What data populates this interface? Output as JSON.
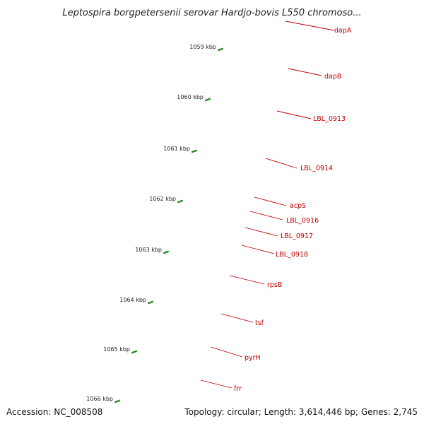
{
  "title": "Leptospira borgpetersenii serovar Hardjo-bovis L550 chromoso...",
  "footer": {
    "accession": "Accession: NC_008508",
    "summary": "Topology: circular; Length: 3,614,446 bp; Genes: 2,745"
  },
  "scale": {
    "unit": "kbp",
    "ticks": [
      "1059 kbp",
      "1060 kbp",
      "1061 kbp",
      "1062 kbp",
      "1063 kbp",
      "1064 kbp",
      "1065 kbp",
      "1066 kbp"
    ]
  },
  "genes": [
    {
      "name": "dapA",
      "color": "#6b8e23"
    },
    {
      "name": "dapB",
      "color": "#4682b4"
    },
    {
      "name": "LBL_0913",
      "color": "#696969"
    },
    {
      "name": "LBL_0914",
      "color": "#ff0000"
    },
    {
      "name": "acpS",
      "color": "#6a5acd"
    },
    {
      "name": "LBL_0916",
      "color": "#ff0000"
    },
    {
      "name": "LBL_0917",
      "color": "#6b8e23"
    },
    {
      "name": "LBL_0918",
      "color": "#ff0000"
    },
    {
      "name": "rpsB",
      "color": "#f08080"
    },
    {
      "name": "tsf",
      "color": "#f08080"
    },
    {
      "name": "pyrH",
      "color": "#00bfff"
    },
    {
      "name": "frr",
      "color": "#f08080"
    }
  ],
  "colors": {
    "backbone": "#808080",
    "cds_forward": "#ff0000",
    "tick_green": "#228b22",
    "label_line": "#c00000"
  }
}
